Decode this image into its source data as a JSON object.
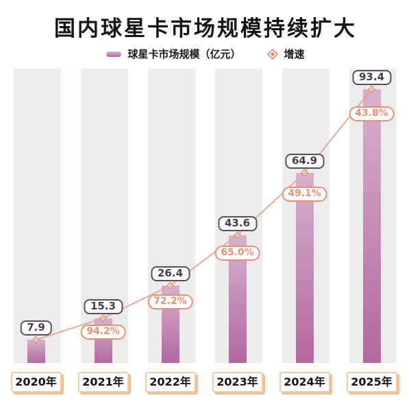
{
  "title": "国内球星卡市场规模持续扩大",
  "legend": {
    "bar_label": "球星卡市场规模（亿元）",
    "line_label": "增速"
  },
  "chart_data": {
    "type": "bar",
    "combo": "bar+line",
    "title": "国内球星卡市场规模持续扩大",
    "categories": [
      "2020年",
      "2021年",
      "2022年",
      "2023年",
      "2024年",
      "2025年"
    ],
    "series": [
      {
        "name": "球星卡市场规模（亿元）",
        "type": "bar",
        "unit": "亿元",
        "values": [
          7.9,
          15.3,
          26.4,
          43.6,
          64.9,
          93.4
        ]
      },
      {
        "name": "增速",
        "type": "line",
        "unit": "%",
        "values": [
          null,
          94.2,
          72.2,
          65.0,
          49.1,
          43.8
        ]
      }
    ],
    "value_labels": [
      "7.9",
      "15.3",
      "26.4",
      "43.6",
      "64.9",
      "93.4"
    ],
    "growth_labels": [
      "",
      "94.2%",
      "72.2%",
      "65.0%",
      "49.1%",
      "43.8%"
    ],
    "ylim": [
      0,
      100
    ],
    "grid": false,
    "axes_visible": false,
    "legend_position": "top"
  },
  "colors": {
    "bar_top": "#d7b1ce",
    "bar_bottom": "#b2689e",
    "track": "#ececec",
    "line": "#eba287",
    "marker_stroke": "#e2886c",
    "marker_fill": "#fdf4ef",
    "value_box_border": "#5d4a5f",
    "value_text": "#483b4d",
    "growth_accent": "#ea9071",
    "axis_box_border": "#f5c9a2",
    "axis_box_shadow": "#eec09a",
    "title_color": "#141414"
  }
}
